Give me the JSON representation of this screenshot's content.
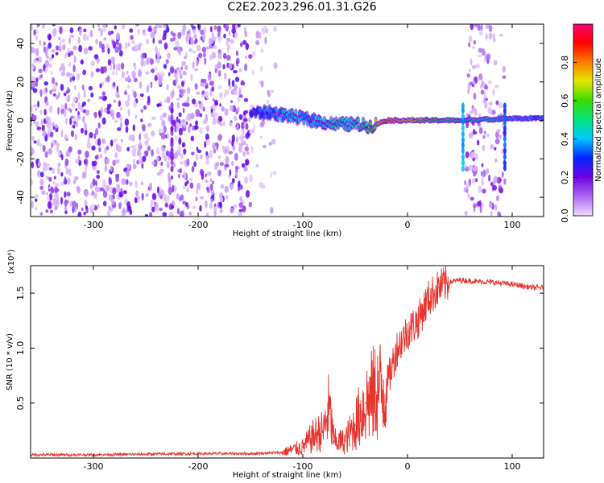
{
  "title": "C2E2.2023.296.01.31.G26",
  "chart_data": [
    {
      "type": "heatmap",
      "xlabel": "Height of straight line (km)",
      "ylabel": "Frequency (Hz)",
      "xlim": [
        -360,
        130
      ],
      "ylim": [
        -50,
        50
      ],
      "xticks": [
        -300,
        -200,
        -100,
        0,
        100
      ],
      "xtick_labels": [
        "-300",
        "-200",
        "-100",
        "0",
        "100"
      ],
      "yticks": [
        -40,
        -20,
        0,
        20,
        40
      ],
      "ytick_labels": [
        "-40",
        "-20",
        "0",
        "20",
        "40"
      ],
      "colorbar": {
        "label": "Normalized spectral amplitude",
        "range": [
          0,
          1
        ],
        "ticks": [
          0.0,
          0.2,
          0.4,
          0.6,
          0.8
        ],
        "tick_labels": [
          "0.0",
          "0.2",
          "0.4",
          "0.6",
          "0.8"
        ]
      },
      "noise_regions": [
        {
          "x_start": -360,
          "x_end": -150,
          "f_min": -50,
          "f_max": 50,
          "level": 0.1
        },
        {
          "x_start": -150,
          "x_end": -125,
          "f_min": -50,
          "f_max": 50,
          "level": 0.03
        },
        {
          "x_start": 55,
          "x_end": 93,
          "f_min": -50,
          "f_max": 50,
          "level": 0.08
        }
      ],
      "signal_trace": [
        {
          "x": -150,
          "f": 4,
          "amp": 0.3
        },
        {
          "x": -130,
          "f": 4,
          "amp": 0.35
        },
        {
          "x": -110,
          "f": 2,
          "amp": 0.4
        },
        {
          "x": -90,
          "f": 0,
          "amp": 0.4
        },
        {
          "x": -70,
          "f": -2,
          "amp": 0.45
        },
        {
          "x": -50,
          "f": -2,
          "amp": 0.45
        },
        {
          "x": -35,
          "f": -3,
          "amp": 0.55
        },
        {
          "x": -20,
          "f": 0,
          "amp": 0.8
        },
        {
          "x": 0,
          "f": 0,
          "amp": 0.7
        },
        {
          "x": 30,
          "f": 0,
          "amp": 0.55
        },
        {
          "x": 52,
          "f": 0,
          "amp": 0.5
        },
        {
          "x": 100,
          "f": 1,
          "amp": 0.4
        },
        {
          "x": 130,
          "f": 1,
          "amp": 0.35
        }
      ]
    },
    {
      "type": "line",
      "xlabel": "Height of straight line (km)",
      "ylabel": "SNR (10 * v/v)",
      "y_multiplier": "(x10⁴)",
      "xlim": [
        -360,
        130
      ],
      "ylim": [
        0,
        17500
      ],
      "xticks": [
        -300,
        -200,
        -100,
        0,
        100
      ],
      "xtick_labels": [
        "-300",
        "-200",
        "-100",
        "0",
        "100"
      ],
      "yticks": [
        5000,
        10000,
        15000
      ],
      "ytick_labels": [
        "0.5",
        "1.0",
        "1.5"
      ],
      "series": [
        {
          "color": "#e8322c",
          "x": [
            -360,
            -300,
            -200,
            -150,
            -120,
            -100,
            -90,
            -80,
            -75,
            -70,
            -60,
            -50,
            -40,
            -30,
            -20,
            -10,
            0,
            10,
            20,
            30,
            40,
            50,
            60,
            80,
            100,
            120,
            130
          ],
          "y": [
            300,
            300,
            400,
            400,
            500,
            1000,
            2000,
            2500,
            4500,
            1500,
            1500,
            3000,
            5000,
            6000,
            6500,
            10000,
            11500,
            12500,
            14500,
            15500,
            16000,
            16200,
            16100,
            16000,
            15800,
            15500,
            15500
          ]
        }
      ]
    }
  ]
}
